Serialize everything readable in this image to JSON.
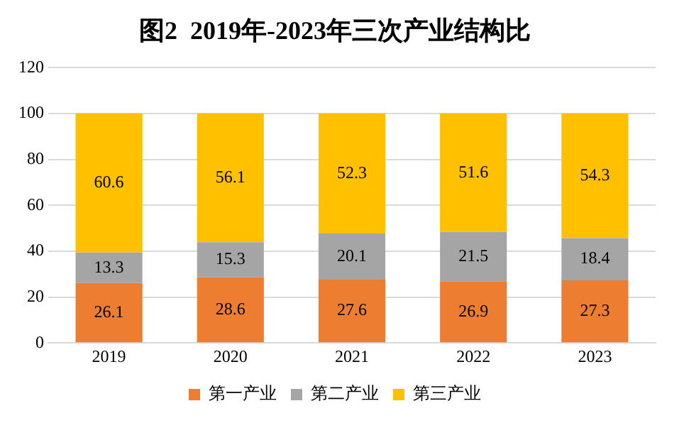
{
  "chart_data": {
    "type": "bar",
    "title": "图2  2019年-2023年三次产业结构比",
    "stacked": true,
    "categories": [
      "2019",
      "2020",
      "2021",
      "2022",
      "2023"
    ],
    "series": [
      {
        "name": "第一产业",
        "color": "#ed7d31",
        "values": [
          26.1,
          28.6,
          27.6,
          26.9,
          27.3
        ]
      },
      {
        "name": "第二产业",
        "color": "#a5a5a5",
        "values": [
          13.3,
          15.3,
          20.1,
          21.5,
          18.4
        ]
      },
      {
        "name": "第三产业",
        "color": "#ffc000",
        "values": [
          60.6,
          56.1,
          52.3,
          51.6,
          54.3
        ]
      }
    ],
    "ylim": [
      0,
      120
    ],
    "yticks": [
      0,
      20,
      40,
      60,
      80,
      100,
      120
    ],
    "grid": "y",
    "legend": "bottom",
    "data_labels": true
  }
}
